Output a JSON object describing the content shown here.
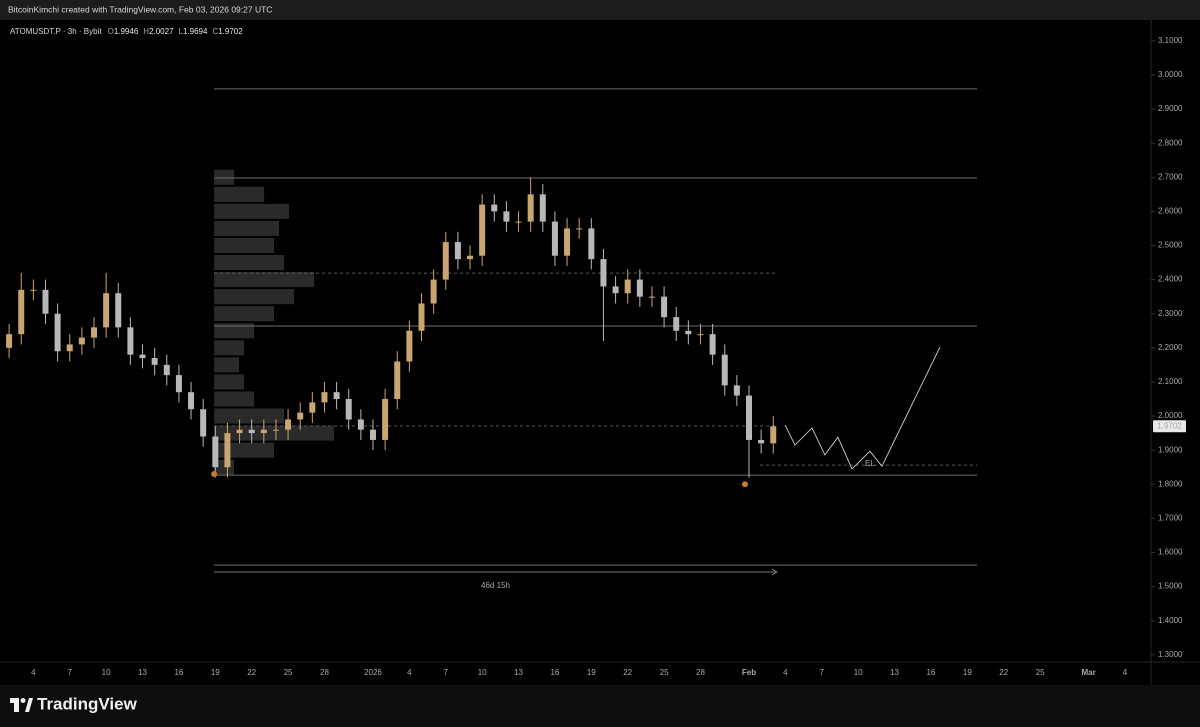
{
  "header": {
    "text": "BitcoinKimchi created with TradingView.com, Feb 03, 2026 09:27 UTC"
  },
  "footer": {
    "brand": "TradingView"
  },
  "chart_data": {
    "type": "candlestick",
    "symbol": "ATOMUSDT.P · 3h · Bybit",
    "ohlc_legend": {
      "labels": [
        "O",
        "H",
        "L",
        "C"
      ],
      "values": [
        1.9946,
        2.0027,
        1.9694,
        1.9702
      ]
    },
    "up_color": "#c9a571",
    "down_color": "#b8b8b8",
    "x": [
      -30,
      -29,
      -28,
      -27,
      -26,
      -25,
      -24,
      -23,
      -22,
      -21,
      -20,
      -19,
      -18,
      -17,
      -16,
      -15,
      -14,
      -13,
      -12,
      -11,
      -10,
      -9,
      -8,
      -7,
      -6,
      -5,
      -4,
      -3,
      -2,
      -1,
      0,
      1,
      2,
      3,
      4,
      5,
      6,
      7,
      8,
      9,
      10,
      11,
      12,
      13,
      14,
      15,
      16,
      17,
      18,
      19,
      20,
      21,
      22,
      23,
      24,
      25,
      26,
      27,
      28,
      29,
      30,
      31,
      32,
      33
    ],
    "open": [
      2.2,
      2.24,
      2.37,
      2.37,
      2.3,
      2.19,
      2.21,
      2.23,
      2.26,
      2.36,
      2.26,
      2.18,
      2.17,
      2.15,
      2.12,
      2.07,
      2.02,
      1.94,
      1.85,
      1.95,
      1.96,
      1.95,
      1.96,
      1.96,
      1.99,
      2.01,
      2.04,
      2.07,
      2.05,
      1.99,
      1.96,
      1.93,
      2.05,
      2.16,
      2.25,
      2.33,
      2.4,
      2.51,
      2.46,
      2.47,
      2.62,
      2.6,
      2.57,
      2.57,
      2.65,
      2.57,
      2.47,
      2.55,
      2.55,
      2.46,
      2.38,
      2.36,
      2.4,
      2.35,
      2.35,
      2.29,
      2.25,
      2.24,
      2.24,
      2.18,
      2.09,
      2.06,
      1.93,
      1.92
    ],
    "high": [
      2.27,
      2.42,
      2.4,
      2.4,
      2.33,
      2.24,
      2.26,
      2.29,
      2.42,
      2.39,
      2.29,
      2.21,
      2.2,
      2.18,
      2.15,
      2.1,
      2.05,
      1.97,
      1.98,
      1.99,
      1.99,
      1.99,
      1.99,
      2.02,
      2.04,
      2.07,
      2.1,
      2.1,
      2.08,
      2.02,
      1.99,
      2.08,
      2.19,
      2.28,
      2.36,
      2.43,
      2.54,
      2.54,
      2.5,
      2.65,
      2.65,
      2.63,
      2.6,
      2.7,
      2.68,
      2.6,
      2.58,
      2.58,
      2.58,
      2.49,
      2.41,
      2.43,
      2.43,
      2.38,
      2.38,
      2.32,
      2.28,
      2.27,
      2.27,
      2.21,
      2.12,
      2.09,
      1.96,
      2.0
    ],
    "low": [
      2.17,
      2.21,
      2.34,
      2.27,
      2.16,
      2.16,
      2.18,
      2.2,
      2.23,
      2.23,
      2.15,
      2.14,
      2.12,
      2.09,
      2.04,
      1.99,
      1.91,
      1.82,
      1.82,
      1.92,
      1.92,
      1.92,
      1.93,
      1.93,
      1.96,
      1.98,
      2.01,
      2.02,
      1.96,
      1.93,
      1.9,
      1.9,
      2.02,
      2.13,
      2.22,
      2.3,
      2.37,
      2.43,
      2.43,
      2.44,
      2.57,
      2.54,
      2.54,
      2.54,
      2.54,
      2.44,
      2.44,
      2.52,
      2.43,
      2.22,
      2.33,
      2.33,
      2.32,
      2.32,
      2.26,
      2.22,
      2.21,
      2.21,
      2.15,
      2.06,
      2.03,
      1.82,
      1.89,
      1.89
    ],
    "close": [
      2.24,
      2.37,
      2.37,
      2.3,
      2.19,
      2.21,
      2.23,
      2.26,
      2.36,
      2.26,
      2.18,
      2.17,
      2.15,
      2.12,
      2.07,
      2.02,
      1.94,
      1.85,
      1.95,
      1.96,
      1.95,
      1.96,
      1.96,
      1.99,
      2.01,
      2.04,
      2.07,
      2.05,
      1.99,
      1.96,
      1.93,
      2.05,
      2.16,
      2.25,
      2.33,
      2.4,
      2.51,
      2.46,
      2.47,
      2.62,
      2.6,
      2.57,
      2.57,
      2.65,
      2.57,
      2.47,
      2.55,
      2.55,
      2.46,
      2.38,
      2.36,
      2.4,
      2.35,
      2.35,
      2.29,
      2.25,
      2.24,
      2.24,
      2.18,
      2.09,
      2.06,
      1.93,
      1.92,
      1.97
    ],
    "xlim": [
      -30.75,
      64.06
    ],
    "ylim": [
      1.279,
      3.161
    ],
    "xticks": [
      {
        "value": -28,
        "label": "4"
      },
      {
        "value": -25,
        "label": "7"
      },
      {
        "value": -22,
        "label": "10"
      },
      {
        "value": -19,
        "label": "13"
      },
      {
        "value": -16,
        "label": "16"
      },
      {
        "value": -13,
        "label": "19"
      },
      {
        "value": -10,
        "label": "22"
      },
      {
        "value": -7,
        "label": "25"
      },
      {
        "value": -4,
        "label": "28"
      },
      {
        "value": 0,
        "label": "2026"
      },
      {
        "value": 3,
        "label": "4"
      },
      {
        "value": 6,
        "label": "7"
      },
      {
        "value": 9,
        "label": "10"
      },
      {
        "value": 12,
        "label": "13"
      },
      {
        "value": 15,
        "label": "16"
      },
      {
        "value": 18,
        "label": "19"
      },
      {
        "value": 21,
        "label": "22"
      },
      {
        "value": 24,
        "label": "25"
      },
      {
        "value": 27,
        "label": "28"
      },
      {
        "value": 31,
        "label": "Feb"
      },
      {
        "value": 34,
        "label": "4"
      },
      {
        "value": 37,
        "label": "7"
      },
      {
        "value": 40,
        "label": "10"
      },
      {
        "value": 43,
        "label": "13"
      },
      {
        "value": 46,
        "label": "16"
      },
      {
        "value": 49,
        "label": "19"
      },
      {
        "value": 52,
        "label": "22"
      },
      {
        "value": 55,
        "label": "25"
      },
      {
        "value": 59,
        "label": "Mar"
      },
      {
        "value": 62,
        "label": "4"
      }
    ],
    "yticks": [
      {
        "value": 1.3,
        "label": "1.3000"
      },
      {
        "value": 1.4,
        "label": "1.4000"
      },
      {
        "value": 1.5,
        "label": "1.5000"
      },
      {
        "value": 1.6,
        "label": "1.6000"
      },
      {
        "value": 1.7,
        "label": "1.7000"
      },
      {
        "value": 1.8,
        "label": "1.8000"
      },
      {
        "value": 1.9,
        "label": "1.9000"
      },
      {
        "value": 2.0,
        "label": "2.0000"
      },
      {
        "value": 2.1,
        "label": "2.1000"
      },
      {
        "value": 2.2,
        "label": "2.2000"
      },
      {
        "value": 2.3,
        "label": "2.3000"
      },
      {
        "value": 2.4,
        "label": "2.4000"
      },
      {
        "value": 2.5,
        "label": "2.5000"
      },
      {
        "value": 2.6,
        "label": "2.6000"
      },
      {
        "value": 2.7,
        "label": "2.7000"
      },
      {
        "value": 2.8,
        "label": "2.8000"
      },
      {
        "value": 2.9,
        "label": "2.9000"
      },
      {
        "value": 3.0,
        "label": "3.0000"
      },
      {
        "value": 3.1,
        "label": "3.1000"
      }
    ],
    "levels": [
      {
        "price": 2.959,
        "from": -13.1,
        "to": 49.8,
        "style": "solid"
      },
      {
        "price": 2.698,
        "from": -13.1,
        "to": 49.8,
        "style": "solid"
      },
      {
        "price": 2.419,
        "from": -13.1,
        "to": 33.3,
        "style": "dashed"
      },
      {
        "price": 2.264,
        "from": -13.1,
        "to": 49.8,
        "style": "solid"
      },
      {
        "price": 1.971,
        "from": -13.1,
        "to": 33.3,
        "style": "dashed"
      },
      {
        "price": 1.856,
        "from": 31.9,
        "to": 49.8,
        "style": "dashed"
      },
      {
        "price": 1.827,
        "from": -13.1,
        "to": 49.8,
        "style": "solid"
      },
      {
        "price": 1.563,
        "from": -13.1,
        "to": 49.8,
        "style": "solid"
      }
    ],
    "volume_profile": {
      "from": -13.1,
      "color": "#8a8a8a",
      "prices": [
        1.85,
        1.9,
        1.95,
        2.0,
        2.05,
        2.1,
        2.15,
        2.2,
        2.25,
        2.3,
        2.35,
        2.4,
        2.45,
        2.5,
        2.55,
        2.6,
        2.65,
        2.7
      ],
      "volumes": [
        20,
        60,
        120,
        70,
        40,
        30,
        25,
        30,
        40,
        60,
        80,
        100,
        70,
        60,
        65,
        75,
        50,
        20
      ]
    },
    "projection": {
      "color": "#d0d0d0",
      "x": [
        33.97,
        34.79,
        36.19,
        37.26,
        38.33,
        39.49,
        40.97,
        41.96,
        46.74
      ],
      "y": [
        1.974,
        1.915,
        1.965,
        1.886,
        1.938,
        1.845,
        1.897,
        1.853,
        2.202
      ]
    },
    "annotation": {
      "text": "EL",
      "x": 40.97,
      "y": 1.86
    },
    "measure": {
      "from": -13.1,
      "to": 33.3,
      "price": 1.543,
      "label": "46d 15h"
    },
    "markers": {
      "color": "#c77a2e",
      "x": [
        -13.1,
        30.67
      ],
      "y": [
        1.83,
        1.8
      ]
    }
  }
}
